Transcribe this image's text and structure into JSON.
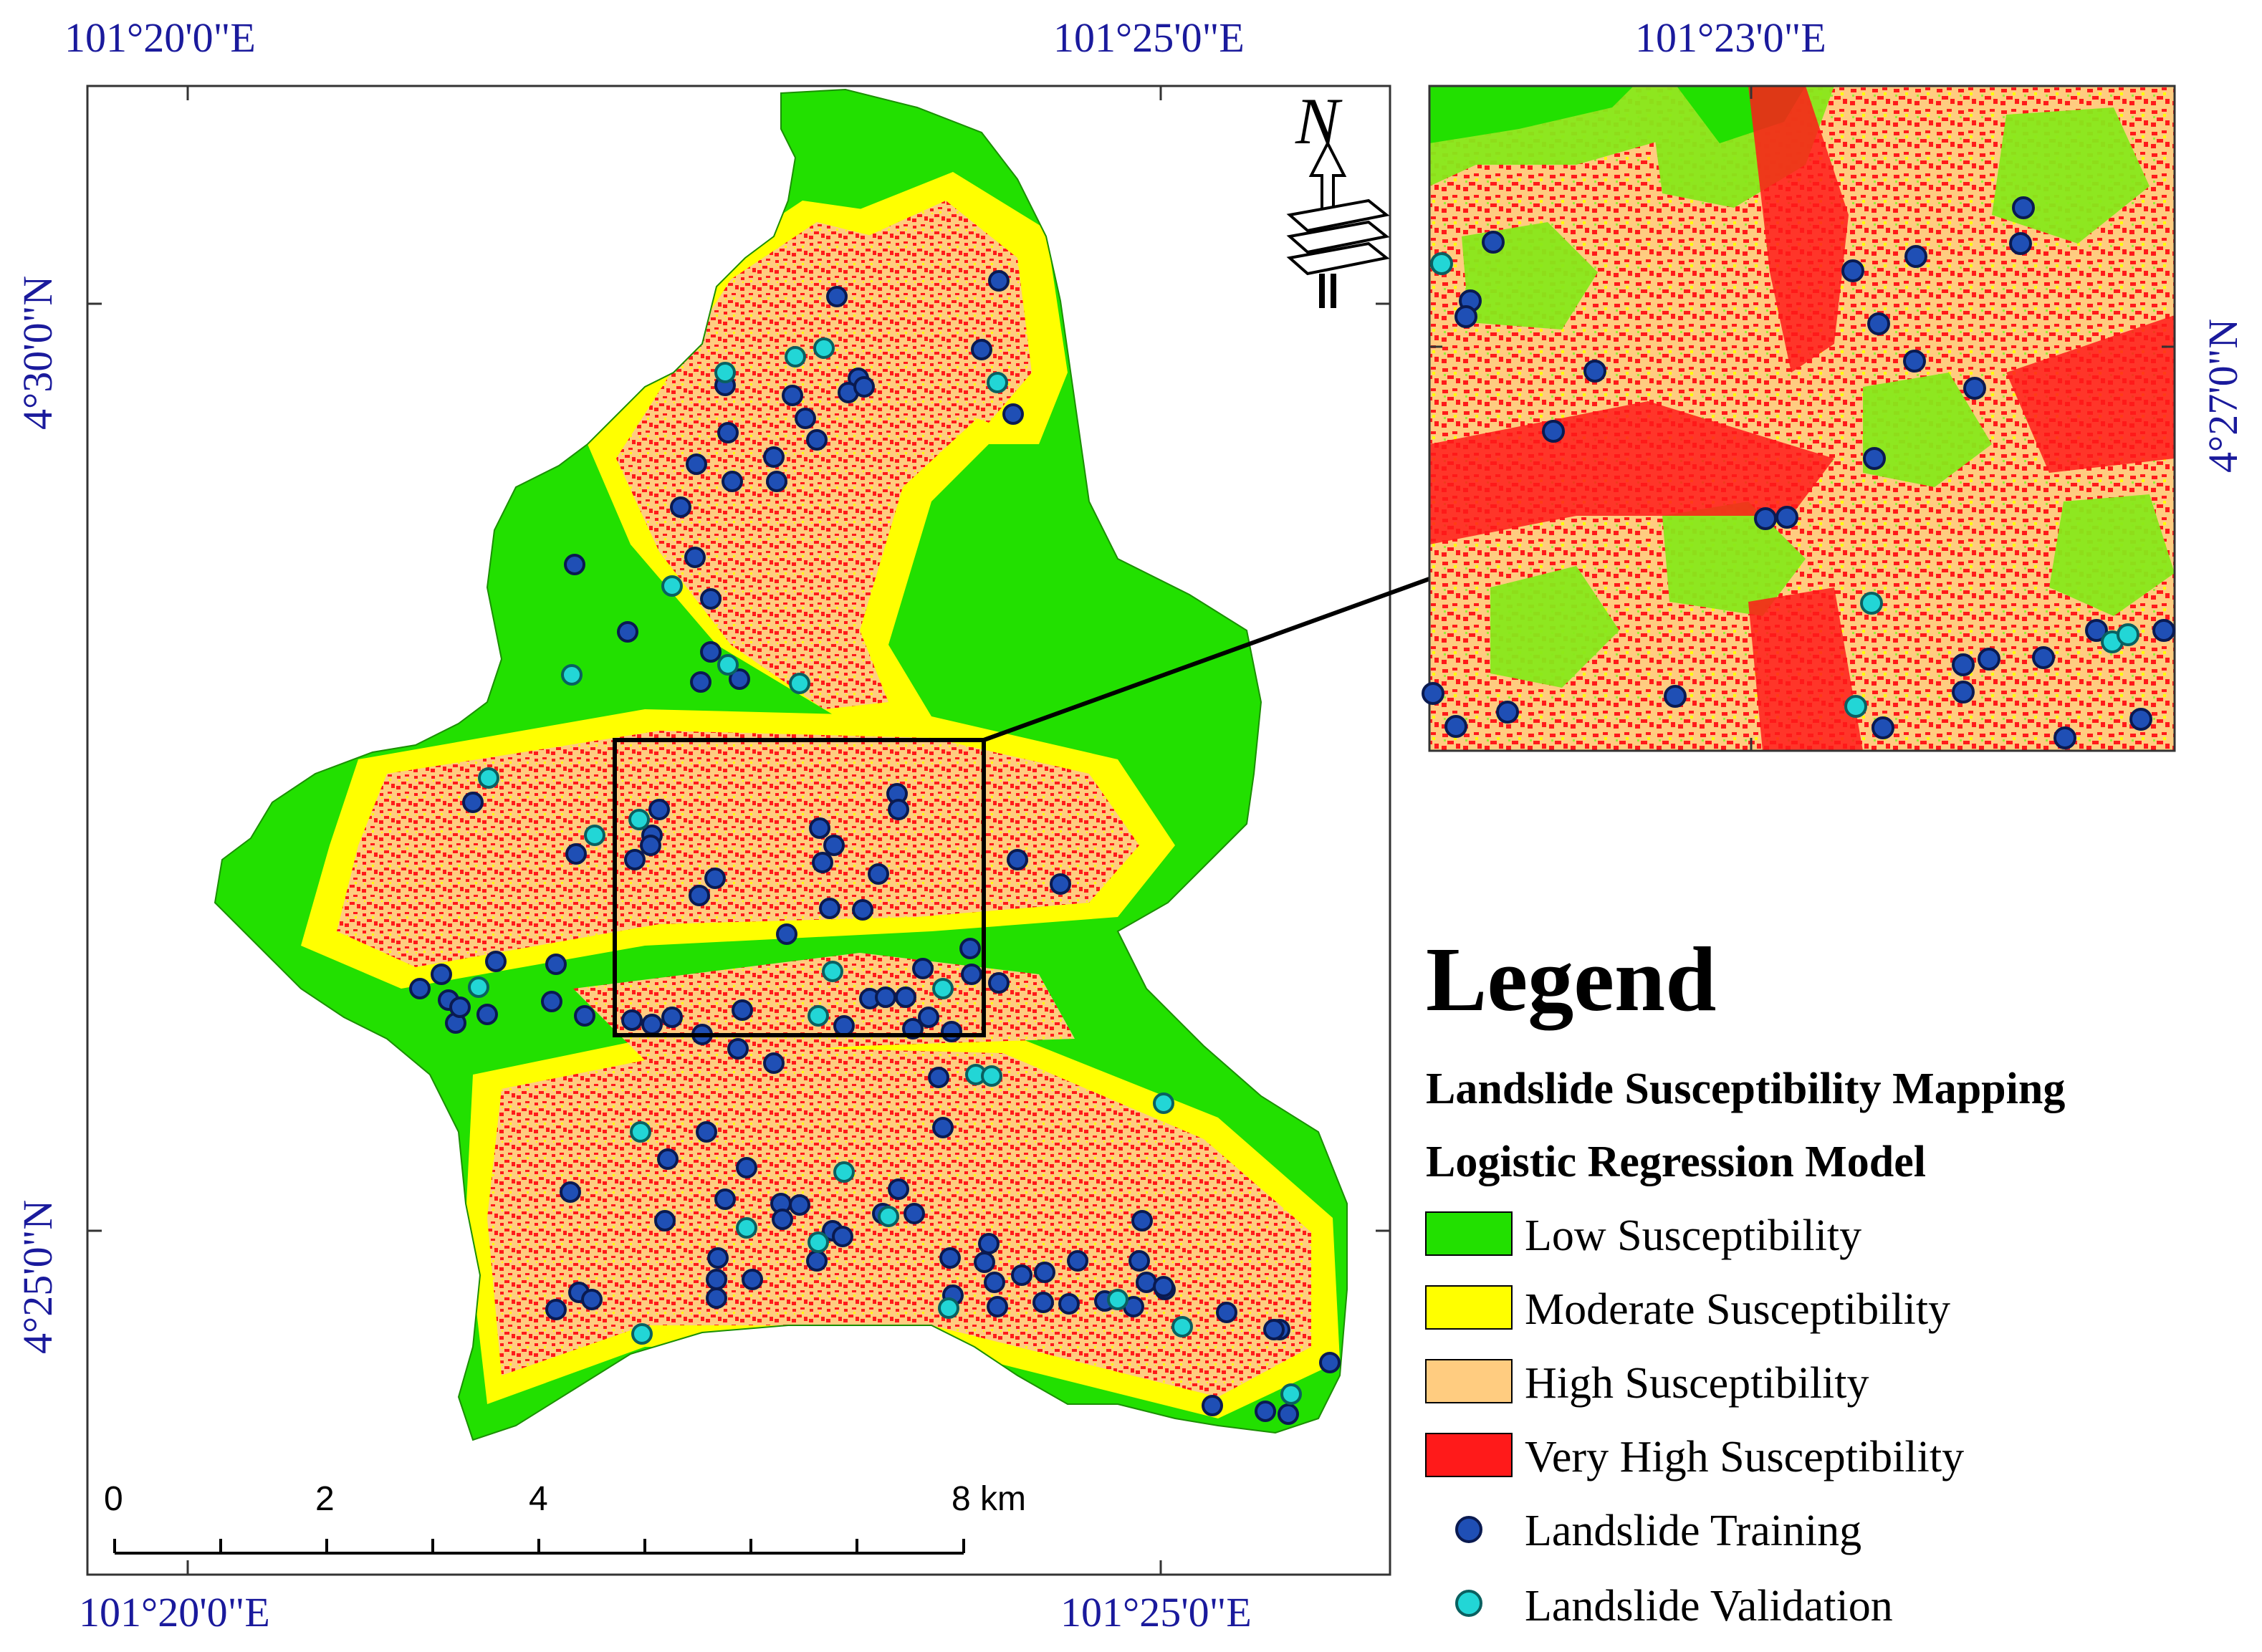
{
  "coordinates": {
    "top_left": "101°20'0\"E",
    "top_right": "101°25'0\"E",
    "bottom_left": "101°20'0\"E",
    "bottom_right": "101°25'0\"E",
    "left_top": "4°30'0\"N",
    "left_bottom": "4°25'0\"N",
    "inset_top": "101°23'0\"E",
    "inset_right": "4°27'0\"N"
  },
  "north_arrow": {
    "label": "N",
    "icon": "north-arrow-icon"
  },
  "scale_bar": {
    "labels": [
      "0",
      "2",
      "4",
      "8 km"
    ]
  },
  "legend": {
    "title": "Legend",
    "subtitle_1": "Landslide Susceptibility Mapping",
    "subtitle_2": "Logistic Regression Model",
    "items": [
      {
        "label": "Low Susceptibility",
        "color": "#22e000",
        "kind": "box"
      },
      {
        "label": "Moderate Susceptibility",
        "color": "#ffff00",
        "kind": "box"
      },
      {
        "label": "High Susceptibility",
        "color": "#ffcc80",
        "kind": "box"
      },
      {
        "label": "Very High Susceptibility",
        "color": "#ff1a1a",
        "kind": "box"
      },
      {
        "label": "Landslide Training",
        "color": "#1f4fb5",
        "kind": "dot"
      },
      {
        "label": "Landslide Validation",
        "color": "#22d6d6",
        "kind": "dot"
      }
    ]
  }
}
